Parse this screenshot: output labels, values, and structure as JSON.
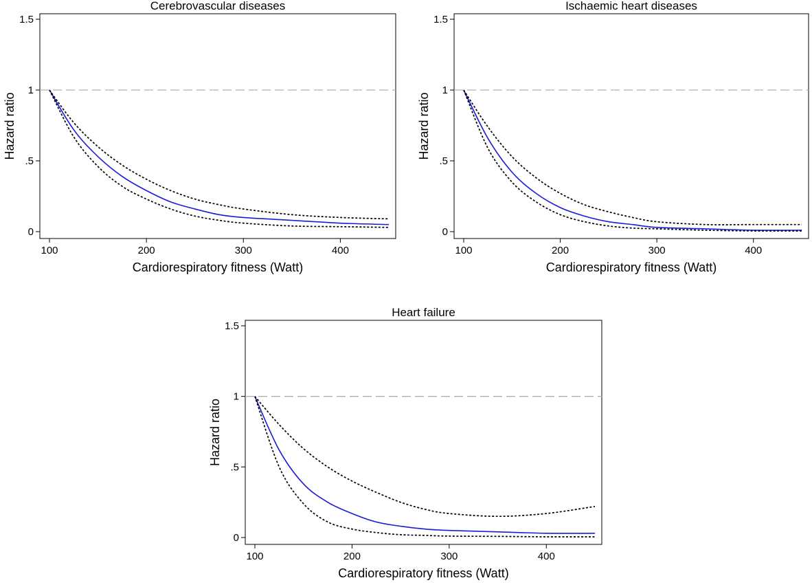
{
  "chart_data": [
    {
      "type": "line",
      "title": "Cerebrovascular diseases",
      "xlabel": "Cardiorespiratory fitness (Watt)",
      "ylabel": "Hazard ratio",
      "xlim": [
        100,
        450
      ],
      "ylim": [
        0,
        1.5
      ],
      "xticks": [
        {
          "v": 100,
          "label": "100"
        },
        {
          "v": 200,
          "label": "200"
        },
        {
          "v": 300,
          "label": "300"
        },
        {
          "v": 400,
          "label": "400"
        }
      ],
      "yticks": [
        {
          "v": 0,
          "label": "0"
        },
        {
          "v": 0.5,
          "label": ".5"
        },
        {
          "v": 1,
          "label": "1"
        },
        {
          "v": 1.5,
          "label": "1.5"
        }
      ],
      "reference_line": {
        "y": 1,
        "style": "dashed",
        "color": "#b0b0b0"
      },
      "grid": false,
      "series": [
        {
          "role": "estimate",
          "color": "#1a1adb",
          "style": "solid",
          "x": [
            100,
            125,
            150,
            175,
            200,
            225,
            250,
            275,
            300,
            350,
            400,
            450
          ],
          "y": [
            1.0,
            0.72,
            0.53,
            0.39,
            0.29,
            0.21,
            0.16,
            0.12,
            0.1,
            0.08,
            0.06,
            0.05
          ]
        },
        {
          "role": "upper",
          "color": "#000000",
          "style": "dotted",
          "x": [
            100,
            125,
            150,
            175,
            200,
            225,
            250,
            275,
            300,
            350,
            400,
            450
          ],
          "y": [
            1.0,
            0.77,
            0.6,
            0.47,
            0.37,
            0.29,
            0.23,
            0.19,
            0.16,
            0.12,
            0.1,
            0.09
          ]
        },
        {
          "role": "lower",
          "color": "#000000",
          "style": "dotted",
          "x": [
            100,
            125,
            150,
            175,
            200,
            225,
            250,
            275,
            300,
            350,
            400,
            450
          ],
          "y": [
            1.0,
            0.67,
            0.46,
            0.32,
            0.23,
            0.16,
            0.11,
            0.08,
            0.06,
            0.04,
            0.035,
            0.03
          ]
        }
      ]
    },
    {
      "type": "line",
      "title": "Ischaemic heart diseases",
      "xlabel": "Cardiorespiratory fitness (Watt)",
      "ylabel": "Hazard ratio",
      "xlim": [
        100,
        450
      ],
      "ylim": [
        0,
        1.5
      ],
      "xticks": [
        {
          "v": 100,
          "label": "100"
        },
        {
          "v": 200,
          "label": "200"
        },
        {
          "v": 300,
          "label": "300"
        },
        {
          "v": 400,
          "label": "400"
        }
      ],
      "yticks": [
        {
          "v": 0,
          "label": "0"
        },
        {
          "v": 0.5,
          "label": ".5"
        },
        {
          "v": 1,
          "label": "1"
        },
        {
          "v": 1.5,
          "label": "1.5"
        }
      ],
      "reference_line": {
        "y": 1,
        "style": "dashed",
        "color": "#b0b0b0"
      },
      "grid": false,
      "series": [
        {
          "role": "estimate",
          "color": "#1a1adb",
          "style": "solid",
          "x": [
            100,
            125,
            150,
            175,
            200,
            225,
            250,
            275,
            300,
            350,
            400,
            450
          ],
          "y": [
            1.0,
            0.66,
            0.42,
            0.27,
            0.17,
            0.11,
            0.07,
            0.05,
            0.03,
            0.02,
            0.01,
            0.01
          ]
        },
        {
          "role": "upper",
          "color": "#000000",
          "style": "dotted",
          "x": [
            100,
            125,
            150,
            175,
            200,
            225,
            250,
            275,
            300,
            350,
            400,
            450
          ],
          "y": [
            1.0,
            0.74,
            0.53,
            0.38,
            0.27,
            0.19,
            0.14,
            0.1,
            0.07,
            0.05,
            0.05,
            0.05
          ]
        },
        {
          "role": "lower",
          "color": "#000000",
          "style": "dotted",
          "x": [
            100,
            125,
            150,
            175,
            200,
            225,
            250,
            275,
            300,
            350,
            400,
            450
          ],
          "y": [
            1.0,
            0.59,
            0.35,
            0.21,
            0.12,
            0.07,
            0.04,
            0.025,
            0.02,
            0.01,
            0.005,
            0.005
          ]
        }
      ]
    },
    {
      "type": "line",
      "title": "Heart failure",
      "xlabel": "Cardiorespiratory fitness (Watt)",
      "ylabel": "Hazard ratio",
      "xlim": [
        100,
        450
      ],
      "ylim": [
        0,
        1.5
      ],
      "xticks": [
        {
          "v": 100,
          "label": "100"
        },
        {
          "v": 200,
          "label": "200"
        },
        {
          "v": 300,
          "label": "300"
        },
        {
          "v": 400,
          "label": "400"
        }
      ],
      "yticks": [
        {
          "v": 0,
          "label": "0"
        },
        {
          "v": 0.5,
          "label": ".5"
        },
        {
          "v": 1,
          "label": "1"
        },
        {
          "v": 1.5,
          "label": "1.5"
        }
      ],
      "reference_line": {
        "y": 1,
        "style": "dashed",
        "color": "#b0b0b0"
      },
      "grid": false,
      "series": [
        {
          "role": "estimate",
          "color": "#1a1adb",
          "style": "solid",
          "x": [
            100,
            125,
            150,
            175,
            200,
            225,
            250,
            275,
            300,
            350,
            400,
            450
          ],
          "y": [
            1.0,
            0.62,
            0.38,
            0.25,
            0.17,
            0.11,
            0.08,
            0.06,
            0.05,
            0.04,
            0.03,
            0.03
          ]
        },
        {
          "role": "upper",
          "color": "#000000",
          "style": "dotted",
          "x": [
            100,
            125,
            150,
            175,
            200,
            225,
            250,
            275,
            300,
            350,
            400,
            450
          ],
          "y": [
            1.0,
            0.8,
            0.63,
            0.5,
            0.4,
            0.32,
            0.25,
            0.2,
            0.17,
            0.15,
            0.17,
            0.22
          ]
        },
        {
          "role": "lower",
          "color": "#000000",
          "style": "dotted",
          "x": [
            100,
            125,
            150,
            175,
            200,
            225,
            250,
            275,
            300,
            350,
            400,
            450
          ],
          "y": [
            1.0,
            0.5,
            0.24,
            0.11,
            0.06,
            0.035,
            0.02,
            0.015,
            0.01,
            0.008,
            0.005,
            0.005
          ]
        }
      ]
    }
  ]
}
